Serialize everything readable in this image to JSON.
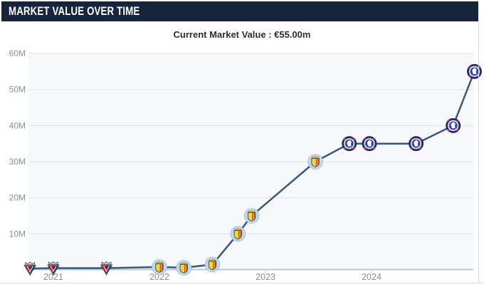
{
  "header": {
    "title": "MARKET VALUE OVER TIME"
  },
  "subtitle": "Current Market Value : €55.00m",
  "colors": {
    "header_bg": "#16243c",
    "header_text": "#ffffff",
    "subtitle_text": "#352a2e",
    "plot_bg": "#f7f8f9",
    "gridline": "#e4e4e4",
    "axis_line": "#bcc7d1",
    "tick": "#c8c8c8",
    "axis_label": "#8d8d92",
    "line": "#35597f",
    "chelsea_navy": "#222c66",
    "chelsea_blue": "#2b44c0",
    "chelsea_red": "#c03040",
    "villarreal_yellow": "#f8d823",
    "villarreal_circle": "#bed9ed",
    "villarreal_red": "#d2420f",
    "mirandes_red": "#c8102e",
    "mirandes_navy": "#232c54"
  },
  "chart_data": {
    "type": "line",
    "title": "Market value over time",
    "xlabel": "",
    "ylabel": "",
    "ylim_millions": [
      0,
      60
    ],
    "grid": "horizontal",
    "legend": "none",
    "current_value": "€55.00m",
    "yticks": [
      {
        "label": "10M",
        "value": 10
      },
      {
        "label": "20M",
        "value": 20
      },
      {
        "label": "30M",
        "value": 30
      },
      {
        "label": "40M",
        "value": 40
      },
      {
        "label": "50M",
        "value": 50
      },
      {
        "label": "60M",
        "value": 60
      }
    ],
    "xticks": [
      {
        "label": "2021",
        "year": 2021
      },
      {
        "label": "2022",
        "year": 2022
      },
      {
        "label": "2023",
        "year": 2023
      },
      {
        "label": "2024",
        "year": 2024
      }
    ],
    "clubs": {
      "mirandes": "CD Mirandés",
      "villarreal": "Villarreal CF",
      "chelsea": "Chelsea FC"
    },
    "points": [
      {
        "club": "mirandes",
        "date": "Oct 2020",
        "year": 2020.78,
        "value_m": 0.4
      },
      {
        "club": "mirandes",
        "date": "Jan 2021",
        "year": 2021.0,
        "value_m": 0.5
      },
      {
        "club": "mirandes",
        "date": "Jun 2021",
        "year": 2021.5,
        "value_m": 0.5
      },
      {
        "club": "villarreal",
        "date": "Jan 2022",
        "year": 2022.0,
        "value_m": 0.8
      },
      {
        "club": "villarreal",
        "date": "Mar 2022",
        "year": 2022.23,
        "value_m": 0.6
      },
      {
        "club": "villarreal",
        "date": "Jun 2022",
        "year": 2022.5,
        "value_m": 1.5
      },
      {
        "club": "villarreal",
        "date": "Sep 2022",
        "year": 2022.74,
        "value_m": 10.0
      },
      {
        "club": "villarreal",
        "date": "Nov 2022",
        "year": 2022.87,
        "value_m": 15.0
      },
      {
        "club": "villarreal",
        "date": "Jun 2023",
        "year": 2023.47,
        "value_m": 30.0
      },
      {
        "club": "chelsea",
        "date": "Sep 2023",
        "year": 2023.79,
        "value_m": 35.0
      },
      {
        "club": "chelsea",
        "date": "Dec 2023",
        "year": 2023.98,
        "value_m": 35.0
      },
      {
        "club": "chelsea",
        "date": "Jun 2024",
        "year": 2024.42,
        "value_m": 35.0
      },
      {
        "club": "chelsea",
        "date": "Oct 2024",
        "year": 2024.77,
        "value_m": 40.0
      },
      {
        "club": "chelsea",
        "date": "Dec 2024",
        "year": 2024.97,
        "value_m": 55.0
      }
    ]
  }
}
